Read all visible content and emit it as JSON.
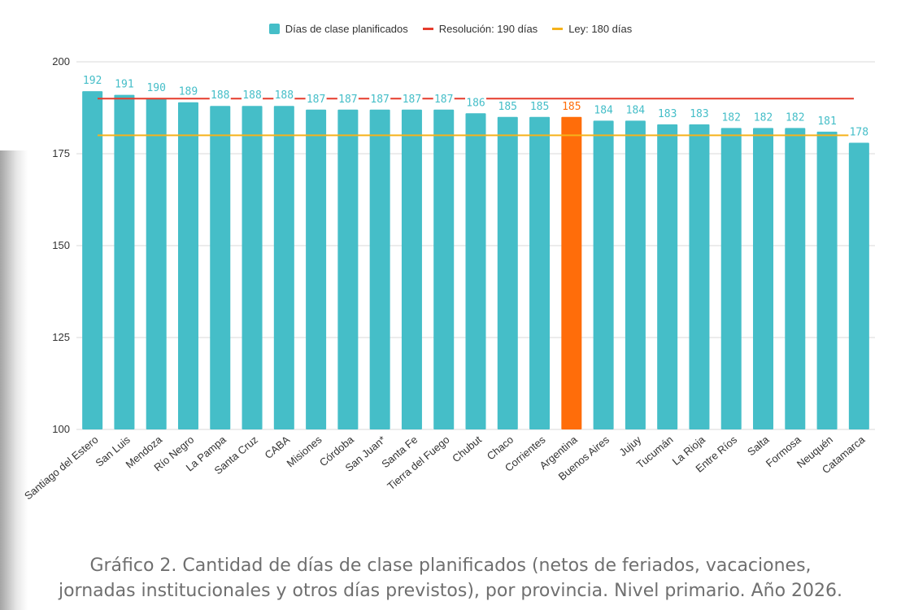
{
  "chart_data": {
    "type": "bar",
    "categories": [
      "Santiago del Estero",
      "San Luis",
      "Mendoza",
      "Río Negro",
      "La Pampa",
      "Santa Cruz",
      "CABA",
      "Misiones",
      "Córdoba",
      "San Juan*",
      "Santa Fe",
      "Tierra del Fuego",
      "Chubut",
      "Chaco",
      "Corrientes",
      "Argentina",
      "Buenos Aires",
      "Jujuy",
      "Tucumán",
      "La Rioja",
      "Entre Ríos",
      "Salta",
      "Formosa",
      "Neuquén",
      "Catamarca"
    ],
    "values": [
      192,
      191,
      190,
      189,
      188,
      188,
      188,
      187,
      187,
      187,
      187,
      187,
      186,
      185,
      185,
      185,
      184,
      184,
      183,
      183,
      182,
      182,
      182,
      181,
      178
    ],
    "highlight_category": "Argentina",
    "ylim": [
      100,
      200
    ],
    "yticks": [
      100,
      125,
      150,
      175,
      200
    ],
    "grid": true,
    "legend_position": "top-center",
    "legend": [
      {
        "label": "Días de clase planificados",
        "kind": "bar"
      },
      {
        "label": "Resolución: 190 días",
        "kind": "line"
      },
      {
        "label": "Ley: 180 días",
        "kind": "line"
      }
    ],
    "reference_lines": [
      {
        "name": "Resolución",
        "value": 190
      },
      {
        "name": "Ley",
        "value": 180
      }
    ],
    "xlabel": "",
    "ylabel": ""
  },
  "colors": {
    "bar": "#45bec8",
    "highlight_bar": "#ff6d0a",
    "highlight_label": "#ff6d0a",
    "bar_label": "#45bec8",
    "resolucion_line": "#e53b2c",
    "ley_line": "#f5b21b",
    "grid": "#d9d9d9",
    "axis_text": "#333333"
  },
  "caption": {
    "line1": "Gráfico 2. Cantidad de días de clase planificados  (netos de feriados, vacaciones,",
    "line2": "jornadas institucionales y otros días previstos), por provincia. Nivel primario. Año 2026."
  }
}
